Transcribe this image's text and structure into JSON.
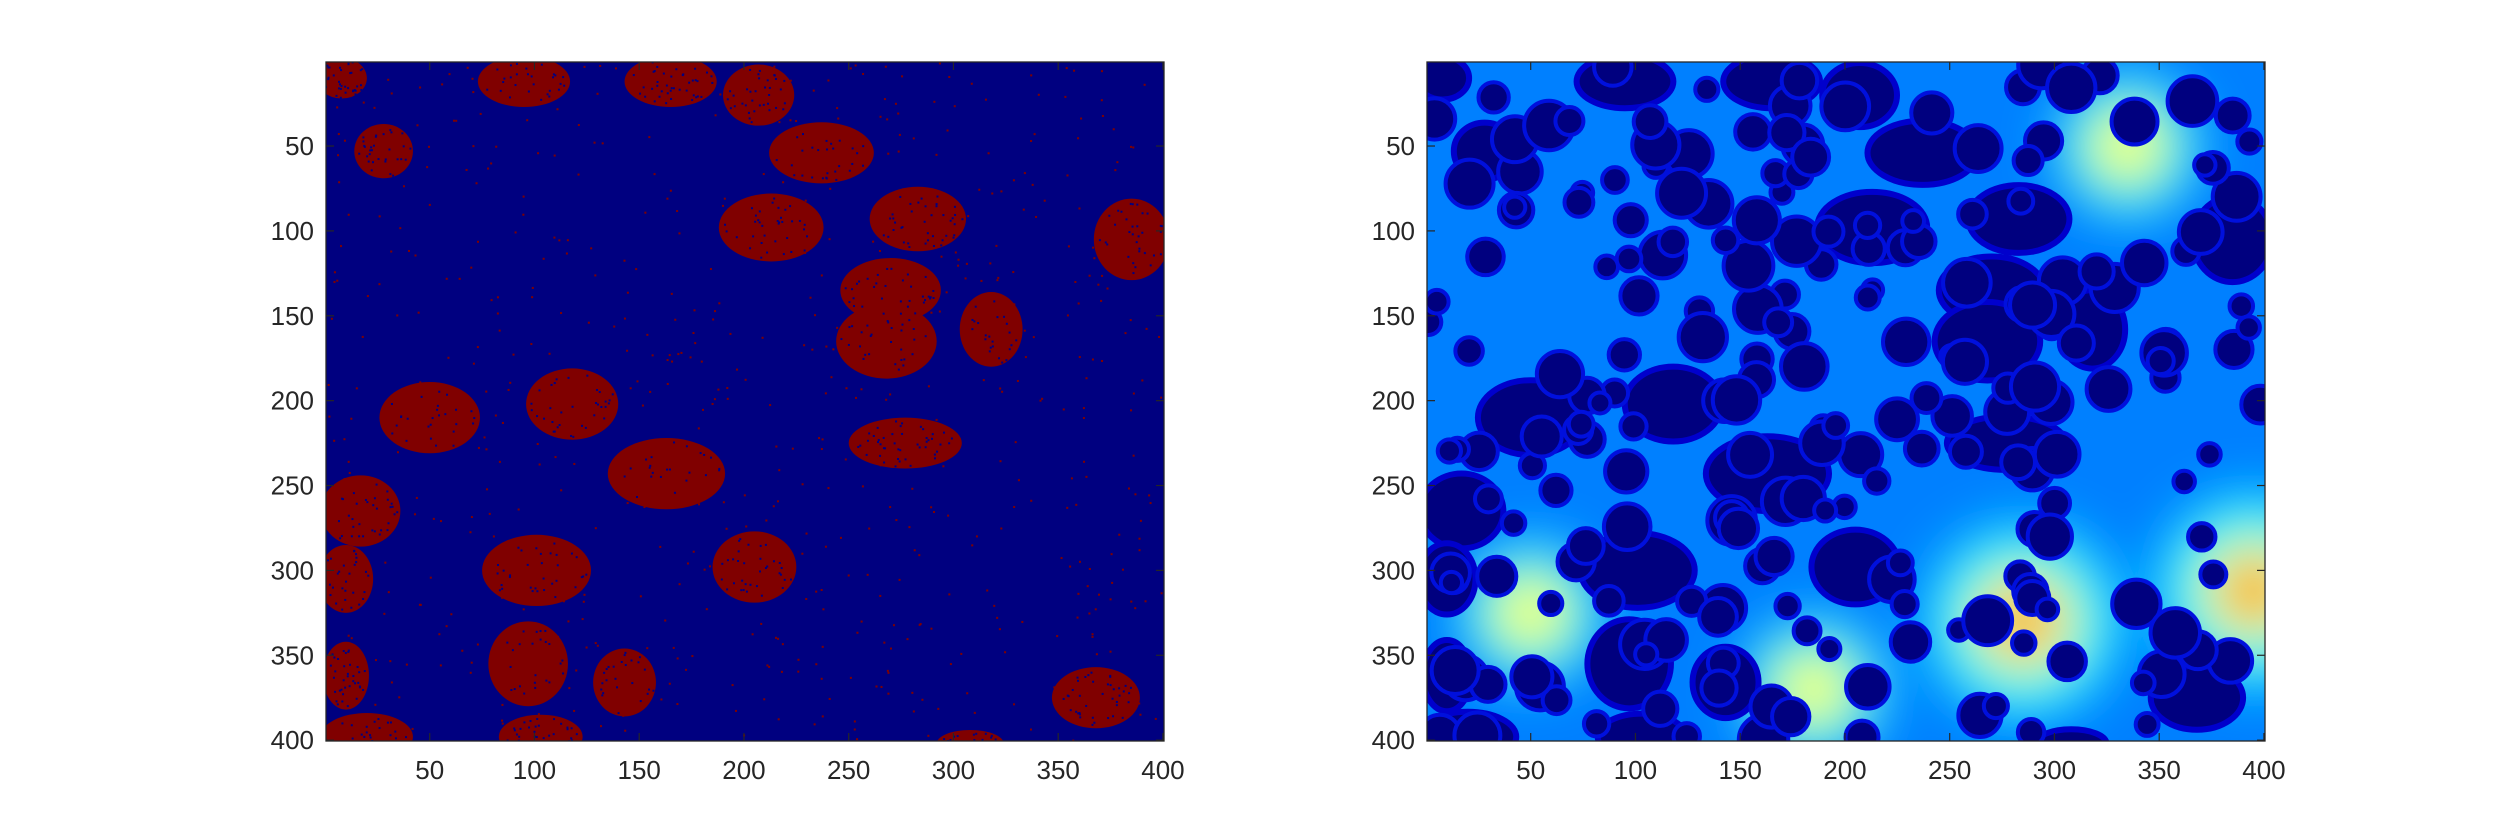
{
  "colors": {
    "background": "#000080",
    "foreground": "#800000",
    "jet_low": "#00007f",
    "jet_mid_blue": "#0080ff",
    "jet_cyan": "#00ffff",
    "jet_yellow": "#ffff00",
    "jet_red": "#ff0000",
    "axis_text": "#262626"
  },
  "chart_data": [
    {
      "type": "heatmap",
      "description_visible": "binary image",
      "colormap": "jet",
      "xlim": [
        1,
        400
      ],
      "ylim": [
        1,
        400
      ],
      "y_reversed": true,
      "xticks": [
        50,
        100,
        150,
        200,
        250,
        300,
        350,
        400
      ],
      "yticks": [
        50,
        100,
        150,
        200,
        250,
        300,
        350,
        400
      ],
      "xtick_labels": [
        "50",
        "100",
        "150",
        "200",
        "250",
        "300",
        "350",
        "400"
      ],
      "ytick_labels": [
        "50",
        "100",
        "150",
        "200",
        "250",
        "300",
        "350",
        "400"
      ],
      "blobs": [
        {
          "cx": 8,
          "cy": 10,
          "rx": 12,
          "ry": 12
        },
        {
          "cx": 95,
          "cy": 12,
          "rx": 22,
          "ry": 15
        },
        {
          "cx": 165,
          "cy": 12,
          "rx": 22,
          "ry": 15
        },
        {
          "cx": 207,
          "cy": 20,
          "rx": 17,
          "ry": 18
        },
        {
          "cx": 28,
          "cy": 53,
          "rx": 14,
          "ry": 16
        },
        {
          "cx": 237,
          "cy": 54,
          "rx": 25,
          "ry": 18
        },
        {
          "cx": 213,
          "cy": 98,
          "rx": 25,
          "ry": 20
        },
        {
          "cx": 283,
          "cy": 93,
          "rx": 23,
          "ry": 19
        },
        {
          "cx": 385,
          "cy": 105,
          "rx": 18,
          "ry": 24
        },
        {
          "cx": 270,
          "cy": 135,
          "rx": 24,
          "ry": 19
        },
        {
          "cx": 268,
          "cy": 165,
          "rx": 24,
          "ry": 22
        },
        {
          "cx": 318,
          "cy": 158,
          "rx": 15,
          "ry": 22
        },
        {
          "cx": 50,
          "cy": 210,
          "rx": 24,
          "ry": 21
        },
        {
          "cx": 118,
          "cy": 202,
          "rx": 22,
          "ry": 21
        },
        {
          "cx": 277,
          "cy": 225,
          "rx": 27,
          "ry": 15
        },
        {
          "cx": 163,
          "cy": 243,
          "rx": 28,
          "ry": 21
        },
        {
          "cx": 17,
          "cy": 265,
          "rx": 19,
          "ry": 21
        },
        {
          "cx": 101,
          "cy": 300,
          "rx": 26,
          "ry": 21
        },
        {
          "cx": 205,
          "cy": 298,
          "rx": 20,
          "ry": 21
        },
        {
          "cx": 10,
          "cy": 305,
          "rx": 13,
          "ry": 20
        },
        {
          "cx": 97,
          "cy": 355,
          "rx": 19,
          "ry": 25
        },
        {
          "cx": 143,
          "cy": 366,
          "rx": 15,
          "ry": 20
        },
        {
          "cx": 10,
          "cy": 362,
          "rx": 11,
          "ry": 20
        },
        {
          "cx": 368,
          "cy": 375,
          "rx": 21,
          "ry": 18
        },
        {
          "cx": 20,
          "cy": 398,
          "rx": 22,
          "ry": 14
        },
        {
          "cx": 103,
          "cy": 398,
          "rx": 20,
          "ry": 13
        },
        {
          "cx": 308,
          "cy": 402,
          "rx": 16,
          "ry": 8
        }
      ]
    },
    {
      "type": "heatmap",
      "description_visible": "distance-transform image",
      "colormap": "jet",
      "xlim": [
        1,
        400
      ],
      "ylim": [
        1,
        400
      ],
      "y_reversed": true,
      "xticks": [
        50,
        100,
        150,
        200,
        250,
        300,
        350,
        400
      ],
      "yticks": [
        50,
        100,
        150,
        200,
        250,
        300,
        350,
        400
      ],
      "xtick_labels": [
        "50",
        "100",
        "150",
        "200",
        "250",
        "300",
        "350",
        "400"
      ],
      "ytick_labels": [
        "50",
        "100",
        "150",
        "200",
        "250",
        "300",
        "350",
        "400"
      ],
      "hot_spots": [
        {
          "x": 285,
          "y": 330,
          "level": "red"
        },
        {
          "x": 395,
          "y": 312,
          "level": "red"
        },
        {
          "x": 50,
          "y": 325,
          "level": "yellow"
        },
        {
          "x": 185,
          "y": 370,
          "level": "yellow"
        },
        {
          "x": 335,
          "y": 50,
          "level": "yellow"
        }
      ]
    }
  ]
}
